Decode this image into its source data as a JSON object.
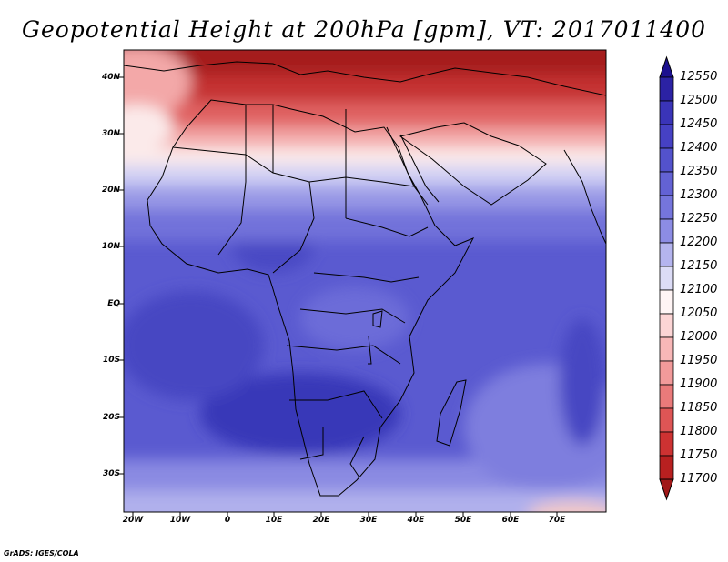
{
  "title": "Geopotential Height at 200hPa [gpm], VT: 2017011400",
  "footer": "GrADS: IGES/COLA",
  "lat_labels": [
    "40N",
    "30N",
    "20N",
    "10N",
    "EQ",
    "10S",
    "20S",
    "30S"
  ],
  "lon_labels": [
    "20W",
    "10W",
    "0",
    "10E",
    "20E",
    "30E",
    "40E",
    "50E",
    "60E",
    "70E"
  ],
  "colorbar": {
    "levels": [
      "12550",
      "12500",
      "12450",
      "12400",
      "12350",
      "12300",
      "12250",
      "12200",
      "12150",
      "12100",
      "12050",
      "12000",
      "11950",
      "11900",
      "11850",
      "11800",
      "11750",
      "11700"
    ],
    "colors": [
      "#1c108f",
      "#2b22a4",
      "#3a34b8",
      "#4641c4",
      "#5352cc",
      "#6362d4",
      "#7575dc",
      "#8c8ce4",
      "#b4b4ee",
      "#dcdcf6",
      "#fff5f5",
      "#fcd5d5",
      "#f8b7b7",
      "#f29a9a",
      "#ea7a7a",
      "#de5555",
      "#cd3232",
      "#b82020",
      "#a01818"
    ]
  },
  "map": {
    "lon_range": [
      -22,
      80
    ],
    "lat_range": [
      -37,
      45
    ],
    "field_colors": {
      "deep_red": "#a51c1c",
      "red": "#cc3030",
      "light_red": "#ef9a9a",
      "pale": "#fbe3e3",
      "white": "#f7f7fd",
      "lavender": "#c4c4f0",
      "light_blue": "#8585e0",
      "mid_blue": "#6666d6",
      "blue": "#5656ce",
      "dark_blue": "#4040c0",
      "deep_blue": "#3131b0"
    }
  }
}
